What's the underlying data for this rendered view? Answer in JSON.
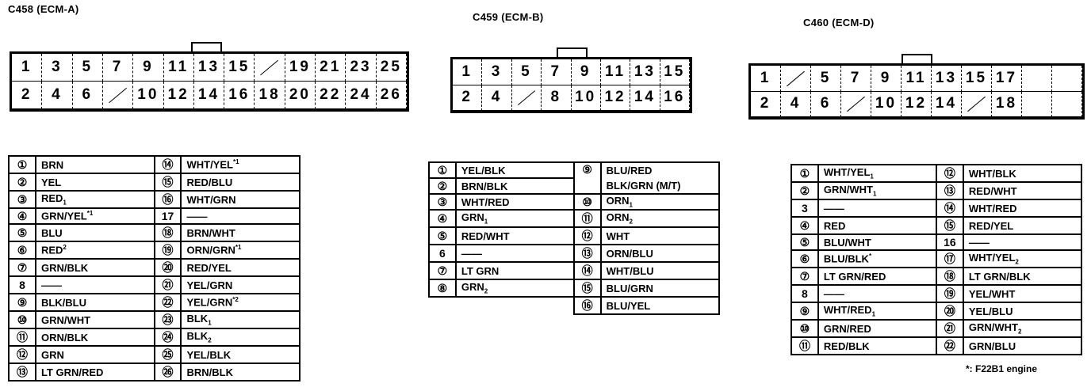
{
  "connectors": [
    {
      "title": "C458 (ECM-A)",
      "top": [
        "1",
        "3",
        "5",
        "7",
        "9",
        "11",
        "13",
        "15",
        "/",
        "19",
        "21",
        "23",
        "25"
      ],
      "bottom": [
        "2",
        "4",
        "6",
        "/",
        "10",
        "12",
        "14",
        "16",
        "18",
        "20",
        "22",
        "24",
        "26"
      ],
      "pins_left": [
        {
          "pin": "①",
          "color": "BRN",
          "sup": ""
        },
        {
          "pin": "②",
          "color": "YEL",
          "sup": ""
        },
        {
          "pin": "③",
          "color": "RED",
          "sub": "1"
        },
        {
          "pin": "④",
          "color": "GRN/YEL",
          "sup": "*1"
        },
        {
          "pin": "⑤",
          "color": "BLU",
          "sup": ""
        },
        {
          "pin": "⑥",
          "color": "RED",
          "sup": "2"
        },
        {
          "pin": "⑦",
          "color": "GRN/BLK",
          "sup": ""
        },
        {
          "pin": "8",
          "color": "——",
          "sup": ""
        },
        {
          "pin": "⑨",
          "color": "BLK/BLU",
          "sup": ""
        },
        {
          "pin": "⑩",
          "color": "GRN/WHT",
          "sup": ""
        },
        {
          "pin": "⑪",
          "color": "ORN/BLK",
          "sup": ""
        },
        {
          "pin": "⑫",
          "color": "GRN",
          "sup": ""
        },
        {
          "pin": "⑬",
          "color": "LT GRN/RED",
          "sup": ""
        }
      ],
      "pins_right": [
        {
          "pin": "⑭",
          "color": "WHT/YEL",
          "sup": "*1"
        },
        {
          "pin": "⑮",
          "color": "RED/BLU",
          "sup": ""
        },
        {
          "pin": "⑯",
          "color": "WHT/GRN",
          "sup": ""
        },
        {
          "pin": "17",
          "color": "——",
          "sup": ""
        },
        {
          "pin": "⑱",
          "color": "BRN/WHT",
          "sup": ""
        },
        {
          "pin": "⑲",
          "color": "ORN/GRN",
          "sup": "*1"
        },
        {
          "pin": "⑳",
          "color": "RED/YEL",
          "sup": ""
        },
        {
          "pin": "㉑",
          "color": "YEL/GRN",
          "sup": ""
        },
        {
          "pin": "㉒",
          "color": "YEL/GRN",
          "sup": "*2"
        },
        {
          "pin": "㉓",
          "color": "BLK",
          "sub": "1"
        },
        {
          "pin": "㉔",
          "color": "BLK",
          "sub": "2"
        },
        {
          "pin": "㉕",
          "color": "YEL/BLK",
          "sup": ""
        },
        {
          "pin": "㉖",
          "color": "BRN/BLK",
          "sup": ""
        }
      ]
    },
    {
      "title": "C459 (ECM-B)",
      "top": [
        "1",
        "3",
        "5",
        "7",
        "9",
        "11",
        "13",
        "15"
      ],
      "bottom": [
        "2",
        "4",
        "/",
        "8",
        "10",
        "12",
        "14",
        "16"
      ],
      "pins_left": [
        {
          "pin": "①",
          "color": "YEL/BLK"
        },
        {
          "pin": "②",
          "color": "BRN/BLK"
        },
        {
          "pin": "③",
          "color": "WHT/RED"
        },
        {
          "pin": "④",
          "color": "GRN",
          "sub": "1"
        },
        {
          "pin": "⑤",
          "color": "RED/WHT"
        },
        {
          "pin": "6",
          "color": "——"
        },
        {
          "pin": "⑦",
          "color": "LT GRN"
        },
        {
          "pin": "⑧",
          "color": "GRN",
          "sub": "2"
        }
      ],
      "pins_right": [
        {
          "pin": "⑨",
          "color": "BLU/RED",
          "color2": "BLK/GRN (M/T)"
        },
        {
          "pin": "⑩",
          "color": "ORN",
          "sub": "1"
        },
        {
          "pin": "⑪",
          "color": "ORN",
          "sub": "2"
        },
        {
          "pin": "⑫",
          "color": "WHT"
        },
        {
          "pin": "⑬",
          "color": "ORN/BLU"
        },
        {
          "pin": "⑭",
          "color": "WHT/BLU"
        },
        {
          "pin": "⑮",
          "color": "BLU/GRN"
        },
        {
          "pin": "⑯",
          "color": "BLU/YEL"
        }
      ]
    },
    {
      "title": "C460 (ECM-D)",
      "top": [
        "1",
        "/",
        "5",
        "7",
        "9",
        "11",
        "13",
        "15",
        "17",
        "",
        ""
      ],
      "bottom": [
        "2",
        "4",
        "6",
        "/",
        "10",
        "12",
        "14",
        "/",
        "18",
        "",
        ""
      ],
      "pins_left": [
        {
          "pin": "①",
          "color": "WHT/YEL",
          "sub": "1"
        },
        {
          "pin": "②",
          "color": "GRN/WHT",
          "sub": "1"
        },
        {
          "pin": "3",
          "color": "——"
        },
        {
          "pin": "④",
          "color": "RED"
        },
        {
          "pin": "⑤",
          "color": "BLU/WHT"
        },
        {
          "pin": "⑥",
          "color": "BLU/BLK",
          "sup": "*"
        },
        {
          "pin": "⑦",
          "color": "LT GRN/RED"
        },
        {
          "pin": "8",
          "color": "——"
        },
        {
          "pin": "⑨",
          "color": "WHT/RED",
          "sub": "1"
        },
        {
          "pin": "⑩",
          "color": "GRN/RED"
        },
        {
          "pin": "⑪",
          "color": "RED/BLK"
        }
      ],
      "pins_right": [
        {
          "pin": "⑫",
          "color": "WHT/BLK"
        },
        {
          "pin": "⑬",
          "color": "RED/WHT"
        },
        {
          "pin": "⑭",
          "color": "WHT/RED"
        },
        {
          "pin": "⑮",
          "color": "RED/YEL"
        },
        {
          "pin": "16",
          "color": "——"
        },
        {
          "pin": "⑰",
          "color": "WHT/YEL",
          "sub": "2"
        },
        {
          "pin": "⑱",
          "color": "LT GRN/BLK"
        },
        {
          "pin": "⑲",
          "color": "YEL/WHT"
        },
        {
          "pin": "⑳",
          "color": "YEL/BLU"
        },
        {
          "pin": "㉑",
          "color": "GRN/WHT",
          "sub": "2"
        },
        {
          "pin": "㉒",
          "color": "GRN/BLU"
        }
      ],
      "footnote": "*: F22B1 engine"
    }
  ]
}
